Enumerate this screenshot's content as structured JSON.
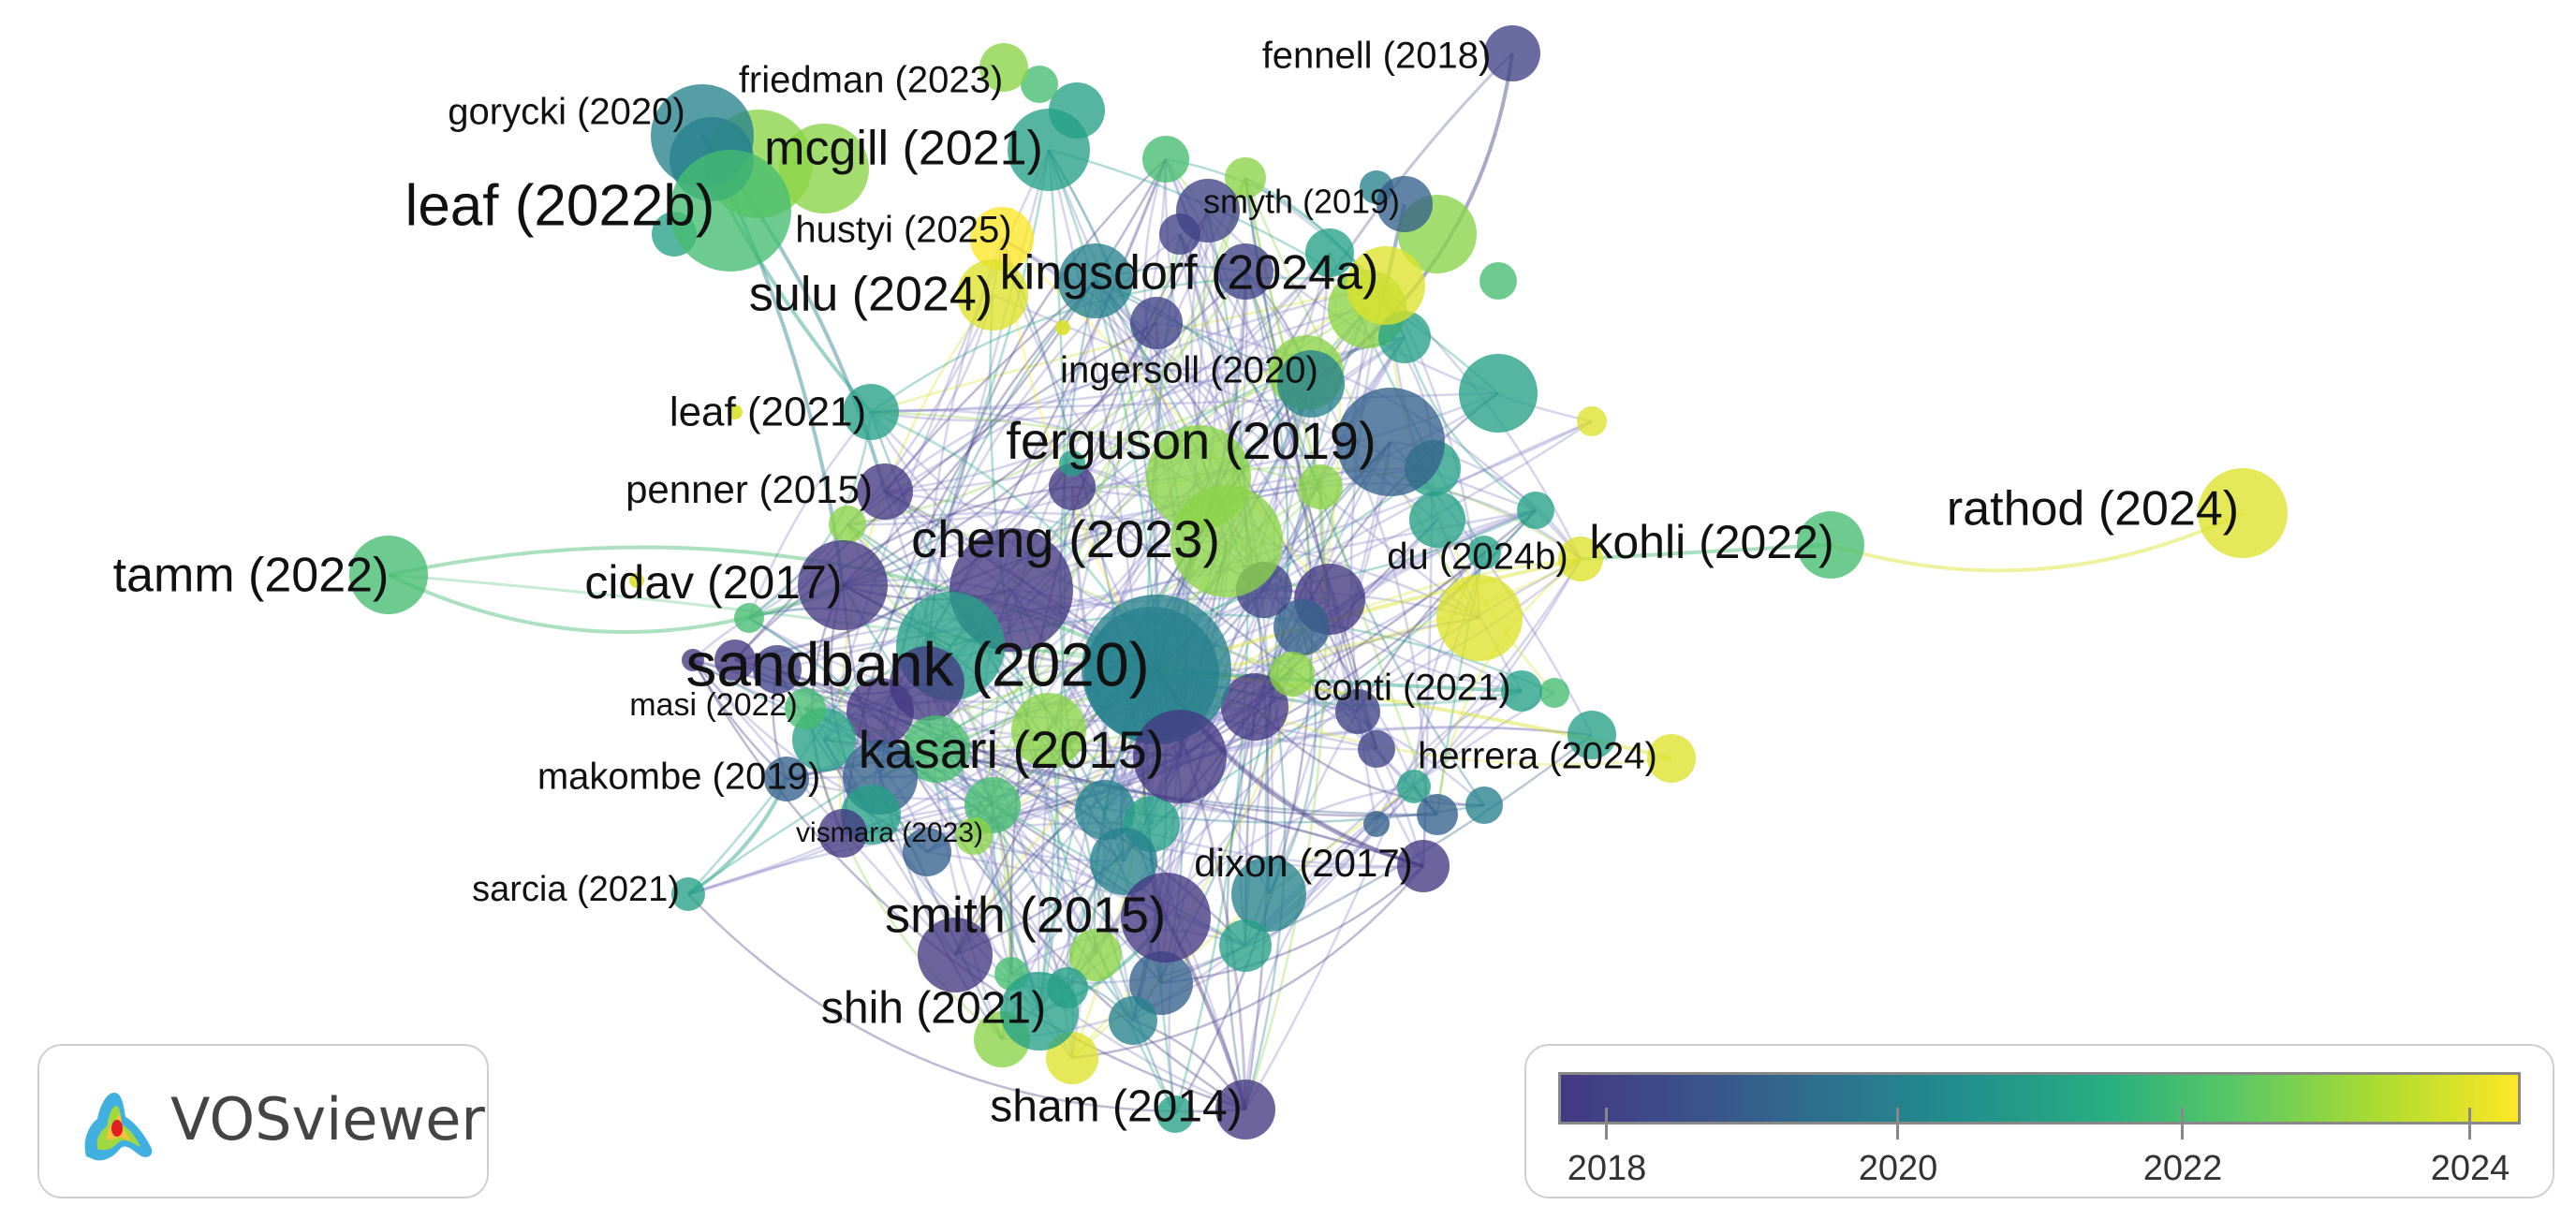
{
  "colors": {
    "gradient": [
      "#443983",
      "#3b528b",
      "#2c728e",
      "#21918c",
      "#28ae80",
      "#5ec962",
      "#addc30",
      "#fde725"
    ],
    "edge": "#8a86c8",
    "label": "#111111"
  },
  "labels": [
    {
      "text": "fennell (2018)",
      "year": 2018
    },
    {
      "text": "friedman (2023)",
      "year": 2023
    },
    {
      "text": "gorycki (2020)",
      "year": 2020
    },
    {
      "text": "mcgill (2021)",
      "year": 2021
    },
    {
      "text": "leaf (2022b)",
      "year": 2022
    },
    {
      "text": "smyth (2019)",
      "year": 2019
    },
    {
      "text": "hustyi (2025)",
      "year": 2025
    },
    {
      "text": "kingsdorf (2024a)",
      "year": 2024
    },
    {
      "text": "sulu (2024)",
      "year": 2024
    },
    {
      "text": "ingersoll (2020)",
      "year": 2020
    },
    {
      "text": "leaf (2021)",
      "year": 2021
    },
    {
      "text": "ferguson (2019)",
      "year": 2019
    },
    {
      "text": "penner (2015)",
      "year": 2015
    },
    {
      "text": "rathod (2024)",
      "year": 2024
    },
    {
      "text": "kohli (2022)",
      "year": 2022
    },
    {
      "text": "tamm (2022)",
      "year": 2022
    },
    {
      "text": "cheng (2023)",
      "year": 2023
    },
    {
      "text": "du (2024b)",
      "year": 2024
    },
    {
      "text": "cidav (2017)",
      "year": 2017
    },
    {
      "text": "sandbank (2020)",
      "year": 2020
    },
    {
      "text": "conti (2021)",
      "year": 2021
    },
    {
      "text": "masi (2022)",
      "year": 2022
    },
    {
      "text": "herrera (2024)",
      "year": 2024
    },
    {
      "text": "kasari (2015)",
      "year": 2015
    },
    {
      "text": "makombe (2019)",
      "year": 2019
    },
    {
      "text": "vismara (2023)",
      "year": 2023
    },
    {
      "text": "dixon (2017)",
      "year": 2017
    },
    {
      "text": "sarcia (2021)",
      "year": 2021
    },
    {
      "text": "smith (2015)",
      "year": 2015
    },
    {
      "text": "shih (2021)",
      "year": 2021
    },
    {
      "text": "sham (2014)",
      "year": 2014
    }
  ],
  "logo": {
    "text": "VOSviewer"
  },
  "scale": {
    "min_year": 2017.6,
    "max_year": 2024.4,
    "ticks": [
      "2018",
      "2020",
      "2022",
      "2024"
    ]
  }
}
